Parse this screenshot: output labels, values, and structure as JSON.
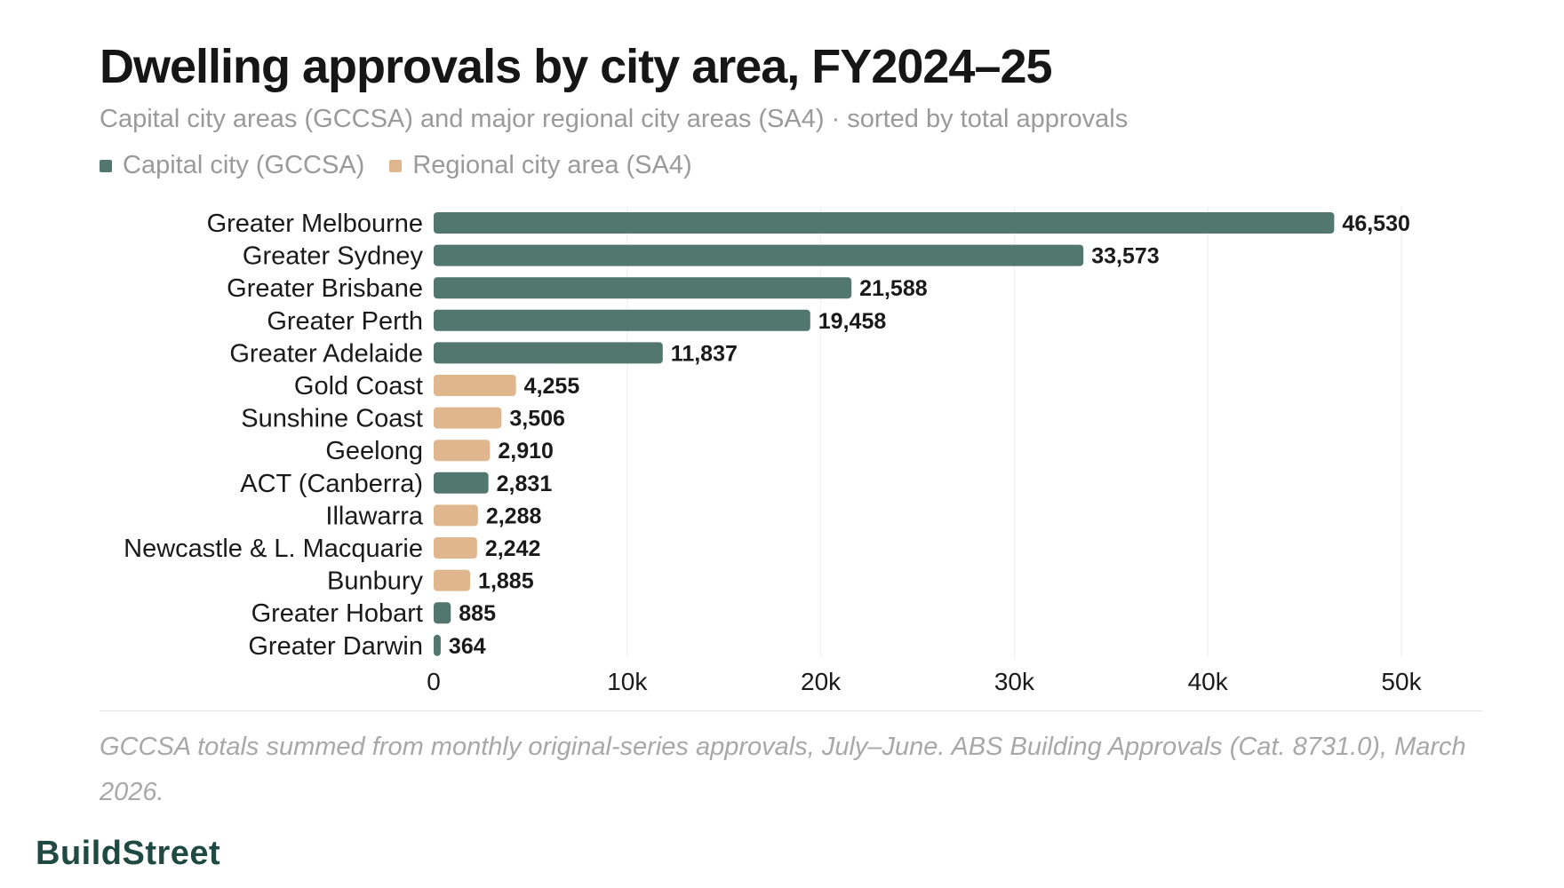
{
  "title": "Dwelling approvals by city area, FY2024–25",
  "subtitle": "Capital city areas (GCCSA) and major regional city areas (SA4) · sorted by total approvals",
  "legend": [
    {
      "label": "Capital city (GCCSA)",
      "color": "#51776f"
    },
    {
      "label": "Regional city area (SA4)",
      "color": "#e0b68f"
    }
  ],
  "note": "GCCSA totals summed from monthly original-series approvals, July–June. ABS Building Approvals (Cat. 8731.0), March 2026.",
  "brand": "BuildStreet",
  "chart_data": {
    "type": "bar",
    "orientation": "horizontal",
    "title": "Dwelling approvals by city area, FY2024–25",
    "xlabel": "",
    "ylabel": "",
    "xlim": [
      0,
      50000
    ],
    "x_ticks": [
      0,
      10000,
      20000,
      30000,
      40000,
      50000
    ],
    "x_tick_labels": [
      "0",
      "10k",
      "20k",
      "30k",
      "40k",
      "50k"
    ],
    "grid": "vertical",
    "legend_position": "top-left",
    "categories": [
      "Greater Melbourne",
      "Greater Sydney",
      "Greater Brisbane",
      "Greater Perth",
      "Greater Adelaide",
      "Gold Coast",
      "Sunshine Coast",
      "Geelong",
      "ACT (Canberra)",
      "Illawarra",
      "Newcastle & L. Macquarie",
      "Bunbury",
      "Greater Hobart",
      "Greater Darwin"
    ],
    "values": [
      46530,
      33573,
      21588,
      19458,
      11837,
      4255,
      3506,
      2910,
      2831,
      2288,
      2242,
      1885,
      885,
      364
    ],
    "value_labels": [
      "46,530",
      "33,573",
      "21,588",
      "19,458",
      "11,837",
      "4,255",
      "3,506",
      "2,910",
      "2,831",
      "2,288",
      "2,242",
      "1,885",
      "885",
      "364"
    ],
    "groups": [
      "Capital city (GCCSA)",
      "Capital city (GCCSA)",
      "Capital city (GCCSA)",
      "Capital city (GCCSA)",
      "Capital city (GCCSA)",
      "Regional city area (SA4)",
      "Regional city area (SA4)",
      "Regional city area (SA4)",
      "Capital city (GCCSA)",
      "Regional city area (SA4)",
      "Regional city area (SA4)",
      "Regional city area (SA4)",
      "Capital city (GCCSA)",
      "Capital city (GCCSA)"
    ]
  }
}
